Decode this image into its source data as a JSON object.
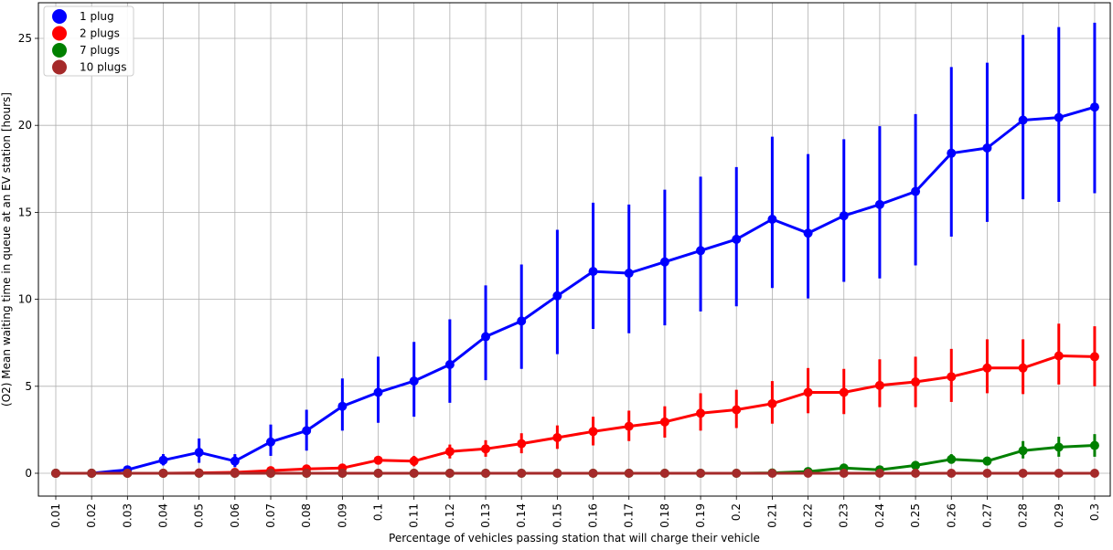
{
  "chart_data": {
    "type": "line",
    "xlabel": "Percentage of vehicles passing station that will charge their vehicle",
    "ylabel": "(O2) Mean waiting time in queue at an EV station [hours]",
    "categories": [
      "0.01",
      "0.02",
      "0.03",
      "0.04",
      "0.05",
      "0.06",
      "0.07",
      "0.08",
      "0.09",
      "0.1",
      "0.11",
      "0.12",
      "0.13",
      "0.14",
      "0.15",
      "0.16",
      "0.17",
      "0.18",
      "0.19",
      "0.2",
      "0.21",
      "0.22",
      "0.23",
      "0.24",
      "0.25",
      "0.26",
      "0.27",
      "0.28",
      "0.29",
      "0.3"
    ],
    "ylim": [
      -1.3,
      27.2
    ],
    "yticks": [
      0,
      5,
      10,
      15,
      20,
      25
    ],
    "grid": true,
    "legend_position": "top-left",
    "series": [
      {
        "name": "1 plug",
        "color": "#0000ff",
        "values": [
          0,
          0,
          0.2,
          0.75,
          1.2,
          0.7,
          1.8,
          2.45,
          3.85,
          4.65,
          5.3,
          6.25,
          7.85,
          8.75,
          10.2,
          11.6,
          11.5,
          12.15,
          12.8,
          13.45,
          14.6,
          13.8,
          14.8,
          15.45,
          16.2,
          18.4,
          18.7,
          20.3,
          20.45,
          21.05
        ],
        "err_low": [
          0,
          0,
          0.15,
          0.45,
          0.6,
          0.35,
          1.0,
          1.3,
          2.45,
          2.9,
          3.25,
          4.05,
          5.35,
          6.0,
          6.85,
          8.3,
          8.05,
          8.5,
          9.3,
          9.6,
          10.65,
          10.05,
          11.0,
          11.2,
          11.95,
          13.6,
          14.45,
          15.75,
          15.6,
          16.1
        ],
        "err_high": [
          0,
          0,
          0.25,
          1.1,
          2.0,
          1.1,
          2.8,
          3.65,
          5.45,
          6.7,
          7.55,
          8.85,
          10.8,
          12.0,
          14.0,
          15.55,
          15.45,
          16.3,
          17.05,
          17.6,
          19.35,
          18.35,
          19.2,
          19.95,
          20.65,
          23.35,
          23.6,
          25.2,
          25.65,
          25.9
        ]
      },
      {
        "name": "2 plugs",
        "color": "#ff0000",
        "values": [
          0,
          0,
          0,
          0,
          0.02,
          0.05,
          0.15,
          0.25,
          0.3,
          0.75,
          0.7,
          1.25,
          1.4,
          1.7,
          2.05,
          2.4,
          2.7,
          2.95,
          3.45,
          3.65,
          4.0,
          4.65,
          4.65,
          5.05,
          5.25,
          5.55,
          6.05,
          6.05,
          6.75,
          6.7
        ],
        "err_low": [
          0,
          0,
          0,
          0,
          0,
          0.02,
          0.05,
          0.1,
          0.15,
          0.5,
          0.4,
          0.85,
          0.95,
          1.15,
          1.4,
          1.6,
          1.85,
          2.05,
          2.45,
          2.6,
          2.85,
          3.45,
          3.4,
          3.8,
          3.8,
          4.1,
          4.6,
          4.55,
          5.1,
          5.0
        ],
        "err_high": [
          0,
          0,
          0,
          0,
          0.04,
          0.1,
          0.3,
          0.45,
          0.45,
          1.0,
          1.0,
          1.65,
          1.9,
          2.3,
          2.75,
          3.25,
          3.6,
          3.85,
          4.6,
          4.8,
          5.3,
          6.05,
          6.0,
          6.55,
          6.7,
          7.15,
          7.7,
          7.7,
          8.6,
          8.45
        ]
      },
      {
        "name": "7 plugs",
        "color": "#008000",
        "values": [
          0,
          0,
          0,
          0,
          0,
          0,
          0,
          0,
          0,
          0,
          0,
          0,
          0,
          0,
          0,
          0,
          0,
          0,
          0,
          0,
          0.02,
          0.1,
          0.3,
          0.2,
          0.45,
          0.8,
          0.7,
          1.3,
          1.5,
          1.6
        ],
        "err_low": [
          0,
          0,
          0,
          0,
          0,
          0,
          0,
          0,
          0,
          0,
          0,
          0,
          0,
          0,
          0,
          0,
          0,
          0,
          0,
          0,
          0.01,
          0.05,
          0.15,
          0.1,
          0.3,
          0.55,
          0.45,
          0.85,
          0.95,
          0.95
        ],
        "err_high": [
          0,
          0,
          0,
          0,
          0,
          0,
          0,
          0,
          0,
          0,
          0,
          0,
          0,
          0,
          0,
          0,
          0,
          0,
          0,
          0,
          0.03,
          0.15,
          0.45,
          0.3,
          0.6,
          1.1,
          0.95,
          1.85,
          2.1,
          2.25
        ]
      },
      {
        "name": "10 plugs",
        "color": "#a52a2a",
        "values": [
          0,
          0,
          0,
          0,
          0,
          0,
          0,
          0,
          0,
          0,
          0,
          0,
          0,
          0,
          0,
          0,
          0,
          0,
          0,
          0,
          0,
          0,
          0,
          0,
          0,
          0,
          0,
          0,
          0,
          0
        ]
      }
    ]
  }
}
